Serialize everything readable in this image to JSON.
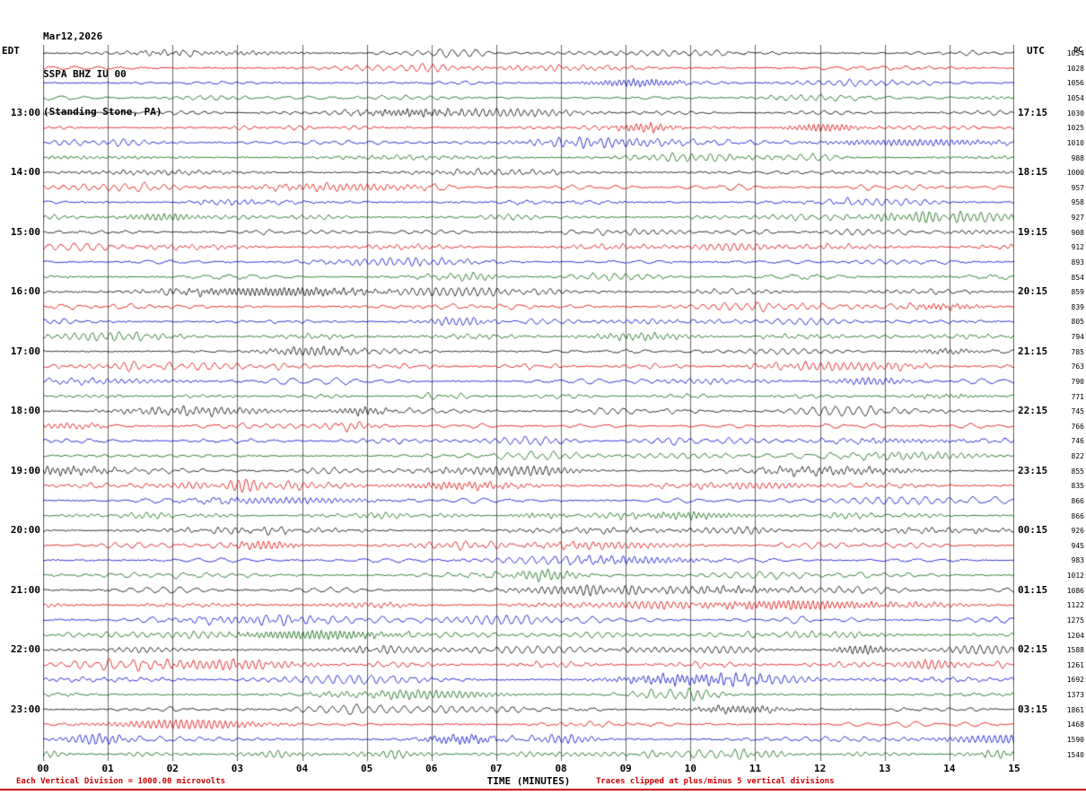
{
  "header": {
    "date": "Mar12,2026",
    "station": "SSPA BHZ IU 00",
    "location": "(Standing Stone, PA)"
  },
  "axes": {
    "left_label": "EDT",
    "right_label": "UTC",
    "dc_label": "DC",
    "x_title": "TIME (MINUTES)",
    "x_ticks": [
      "00",
      "01",
      "02",
      "03",
      "04",
      "05",
      "06",
      "07",
      "08",
      "09",
      "10",
      "11",
      "12",
      "13",
      "14",
      "15"
    ]
  },
  "footer": {
    "left": "Each Vertical Division = 1000.00 microvolts",
    "right": "Traces clipped at plus/minus 5 vertical divisions"
  },
  "colors": {
    "accent_red": "#cc0000",
    "grid": "#666666"
  },
  "chart_data": {
    "type": "line",
    "subtype": "helicorder-seismogram",
    "title": "SSPA BHZ IU 00 (Standing Stone, PA) Mar12,2026",
    "xlabel": "TIME (MINUTES)",
    "x_range_minutes": [
      0,
      15
    ],
    "minutes_per_row": 15,
    "rows": 48,
    "y_units": "microvolts",
    "vertical_division_microvolts": 1000.0,
    "clip_divisions": 5,
    "grid_color": "#666666",
    "row_colors_cycle": [
      "#000000",
      "#dd0000",
      "#0000cc",
      "#006600"
    ],
    "hour_label_rows": [
      4,
      8,
      12,
      16,
      20,
      24,
      28,
      32,
      36,
      40,
      44
    ],
    "hour_labels_edt": [
      "13:00",
      "14:00",
      "15:00",
      "16:00",
      "17:00",
      "18:00",
      "19:00",
      "20:00",
      "21:00",
      "22:00",
      "23:00"
    ],
    "hour_labels_utc": [
      "17:15",
      "18:15",
      "19:15",
      "20:15",
      "21:15",
      "22:15",
      "23:15",
      "00:15",
      "01:15",
      "02:15",
      "03:15"
    ],
    "dc_offsets": [
      1054,
      1028,
      1056,
      1054,
      1030,
      1025,
      1010,
      988,
      1000,
      957,
      958,
      927,
      908,
      912,
      893,
      854,
      859,
      839,
      805,
      794,
      785,
      763,
      790,
      771,
      745,
      766,
      746,
      822,
      855,
      835,
      866,
      866,
      926,
      945,
      983,
      1012,
      1086,
      1122,
      1275,
      1204,
      1588,
      1261,
      1692,
      1373,
      1861,
      1468,
      1590,
      1540
    ]
  }
}
